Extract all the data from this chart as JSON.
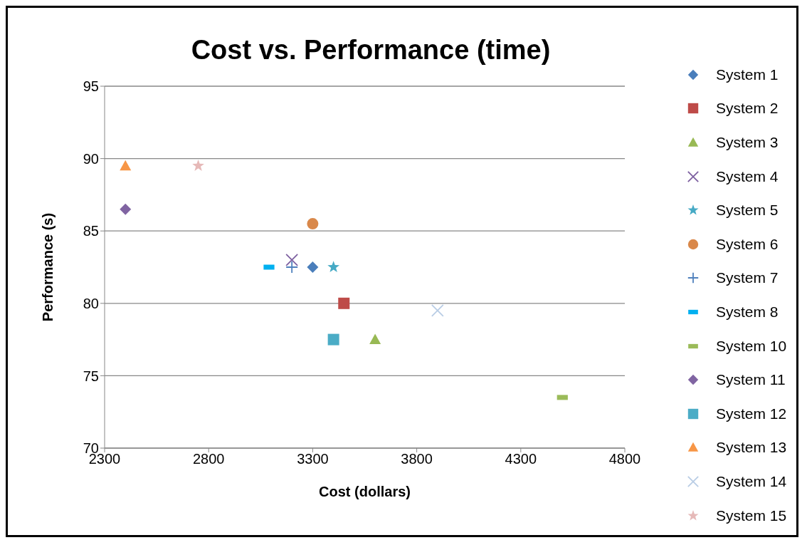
{
  "chart_data": {
    "type": "scatter",
    "title": "Cost vs. Performance (time)",
    "xlabel": "Cost (dollars)",
    "ylabel": "Performance (s)",
    "xlim": [
      2300,
      4800
    ],
    "xticks": [
      2300,
      2800,
      3300,
      3800,
      4300,
      4800
    ],
    "ylim": [
      70,
      95
    ],
    "yticks": [
      70,
      75,
      80,
      85,
      90,
      95
    ],
    "grid": "y",
    "legend": "right",
    "series": [
      {
        "name": "System 1",
        "color": "#4a7ebb",
        "marker": "diamond",
        "x": [
          3300
        ],
        "values": [
          82.5
        ]
      },
      {
        "name": "System 2",
        "color": "#be4b48",
        "marker": "square",
        "x": [
          3450
        ],
        "values": [
          80
        ]
      },
      {
        "name": "System 3",
        "color": "#98b954",
        "marker": "triangle",
        "x": [
          3600
        ],
        "values": [
          77.5
        ]
      },
      {
        "name": "System 4",
        "color": "#7d60a0",
        "marker": "cross",
        "x": [
          3200
        ],
        "values": [
          83
        ]
      },
      {
        "name": "System 5",
        "color": "#46aac5",
        "marker": "star",
        "x": [
          3400
        ],
        "values": [
          82.5
        ]
      },
      {
        "name": "System 6",
        "color": "#d9884a",
        "marker": "circle",
        "x": [
          3300
        ],
        "values": [
          85.5
        ]
      },
      {
        "name": "System 7",
        "color": "#4f81bd",
        "marker": "plus",
        "x": [
          3200
        ],
        "values": [
          82.5
        ]
      },
      {
        "name": "System 8",
        "color": "#00b0f0",
        "x": [
          3090
        ],
        "values": [
          82.5
        ]
      },
      {
        "name": "System 10",
        "color": "#9bbb59",
        "x": [
          4500
        ],
        "values": [
          73.5
        ]
      },
      {
        "name": "System 11",
        "color": "#8064a2",
        "marker": "diamond",
        "x": [
          2400
        ],
        "values": [
          86.5
        ]
      },
      {
        "name": "System 12",
        "color": "#4bacc6",
        "marker": "square",
        "x": [
          3400
        ],
        "values": [
          77.5
        ]
      },
      {
        "name": "System 13",
        "color": "#f79646",
        "marker": "triangle",
        "x": [
          2400
        ],
        "values": [
          89.5
        ]
      },
      {
        "name": "System 14",
        "color": "#b9cde5",
        "marker": "cross",
        "x": [
          3900
        ],
        "values": [
          79.5
        ]
      },
      {
        "name": "System 15",
        "color": "#e6b9b8",
        "marker": "star",
        "x": [
          2750
        ],
        "values": [
          89.5
        ]
      }
    ]
  }
}
